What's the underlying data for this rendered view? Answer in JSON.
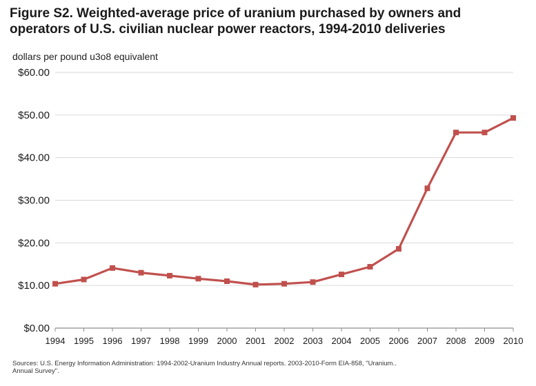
{
  "title_line1": "Figure S2.  Weighted-average price of uranium purchased by owners and",
  "title_line2": "operators of U.S. civilian nuclear power reactors, 1994-2010 deliveries",
  "y_unit_label": "dollars per pound u3o8 equivalent",
  "source_line1": "Sources: U.S. Energy Information Administration: 1994-2002-Uranium Industry Annual reports. 2003-2010-Form EIA-858, \"Uranium..",
  "source_line2": "Annual Survey\".",
  "colors": {
    "series": "#c0504d",
    "grid": "#d9d9d9",
    "axis": "#8c8c8c"
  },
  "chart_data": {
    "type": "line",
    "title": "Weighted-average price of uranium purchased by owners and operators of U.S. civilian nuclear power reactors, 1994-2010 deliveries",
    "ylabel": "dollars per pound u3o8 equivalent",
    "xlabel": "",
    "ylim": [
      0,
      60
    ],
    "grid": true,
    "y_ticks": [
      "$0.00",
      "$10.00",
      "$20.00",
      "$30.00",
      "$40.00",
      "$50.00",
      "$60.00"
    ],
    "y_tick_values": [
      0,
      10,
      20,
      30,
      40,
      50,
      60
    ],
    "categories": [
      "1994",
      "1995",
      "1996",
      "1997",
      "1998",
      "1999",
      "2000",
      "2001",
      "2002",
      "2003",
      "2004",
      "2005",
      "2006",
      "2007",
      "2008",
      "2009",
      "2010"
    ],
    "series": [
      {
        "values": [
          10.4,
          11.4,
          14.1,
          13.0,
          12.3,
          11.6,
          11.0,
          10.2,
          10.4,
          10.8,
          12.6,
          14.4,
          18.6,
          32.8,
          45.9,
          45.9,
          49.3
        ]
      }
    ]
  }
}
